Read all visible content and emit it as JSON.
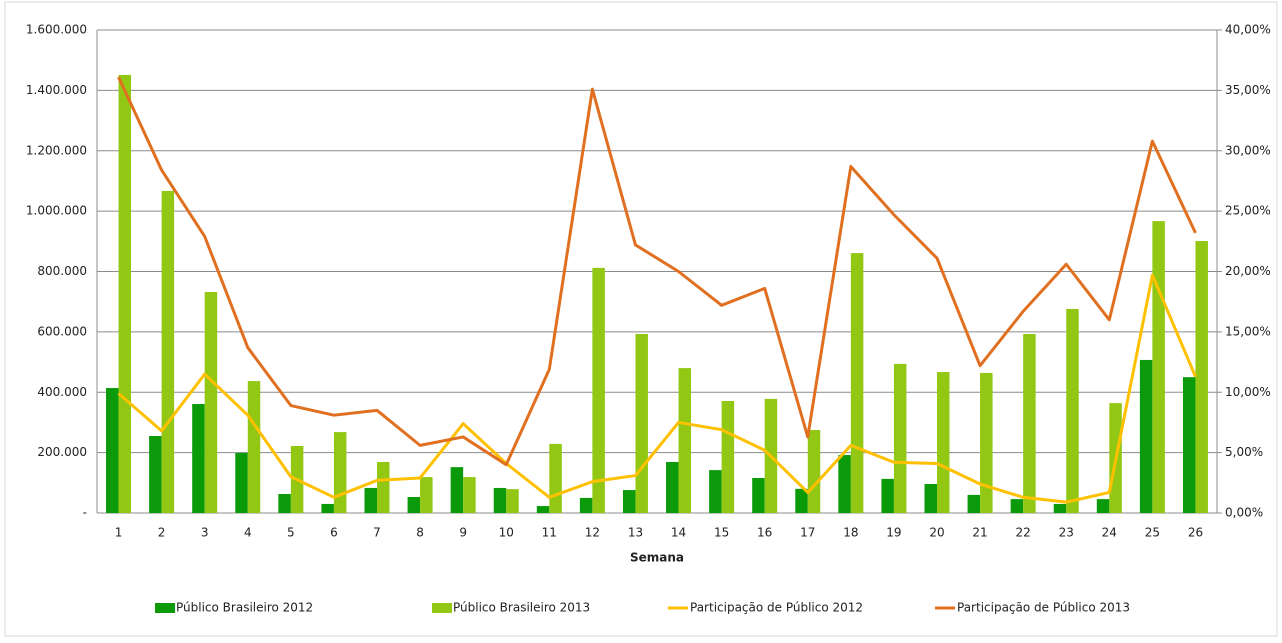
{
  "chart_data": {
    "type": "combo",
    "x_label": "Semana",
    "categories": [
      "1",
      "2",
      "3",
      "4",
      "5",
      "6",
      "7",
      "8",
      "9",
      "10",
      "11",
      "12",
      "13",
      "14",
      "15",
      "16",
      "17",
      "18",
      "19",
      "20",
      "21",
      "22",
      "23",
      "24",
      "25",
      "26"
    ],
    "series": [
      {
        "name": "Público Brasileiro 2012",
        "type": "bar",
        "color": "#0a9a0a",
        "values": [
          414000,
          255000,
          361000,
          199000,
          63000,
          30000,
          83000,
          53000,
          152000,
          83000,
          23000,
          50000,
          76000,
          169000,
          142000,
          116000,
          80000,
          192000,
          113000,
          96000,
          60000,
          46000,
          30000,
          46000,
          507000,
          450000
        ]
      },
      {
        "name": "Público Brasileiro 2013",
        "type": "bar",
        "color": "#92c814",
        "values": [
          1451000,
          1067000,
          732000,
          437000,
          222000,
          268000,
          169000,
          119000,
          119000,
          79000,
          229000,
          812000,
          593000,
          480000,
          371000,
          378000,
          275000,
          861000,
          494000,
          467000,
          464000,
          593000,
          676000,
          364000,
          967000,
          901000
        ]
      },
      {
        "name": "Participação de Público 2012",
        "type": "line",
        "axis": "y2",
        "color": "#ffc000",
        "values": [
          9.9,
          6.8,
          11.5,
          8.1,
          3.0,
          1.3,
          2.7,
          2.9,
          7.4,
          4.1,
          1.3,
          2.6,
          3.1,
          7.5,
          6.9,
          5.2,
          1.7,
          5.6,
          4.2,
          4.1,
          2.4,
          1.3,
          0.9,
          1.7,
          19.7,
          11.3
        ]
      },
      {
        "name": "Participação de Público 2013",
        "type": "line",
        "axis": "y2",
        "color": "#e07020",
        "values": [
          36.1,
          28.4,
          22.9,
          13.7,
          8.9,
          8.1,
          8.5,
          5.6,
          6.3,
          4.0,
          11.9,
          35.1,
          22.2,
          20.0,
          17.2,
          18.6,
          6.3,
          28.7,
          24.7,
          21.1,
          12.2,
          16.7,
          20.6,
          16.0,
          30.8,
          23.2
        ]
      }
    ],
    "ylim": [
      0,
      1600000
    ],
    "yticks": [
      {
        "value": 0,
        "label": "-"
      },
      {
        "value": 200000,
        "label": "200.000"
      },
      {
        "value": 400000,
        "label": "400.000"
      },
      {
        "value": 600000,
        "label": "600.000"
      },
      {
        "value": 800000,
        "label": "800.000"
      },
      {
        "value": 1000000,
        "label": "1.000.000"
      },
      {
        "value": 1200000,
        "label": "1.200.000"
      },
      {
        "value": 1400000,
        "label": "1.400.000"
      },
      {
        "value": 1600000,
        "label": "1.600.000"
      }
    ],
    "y2lim": [
      0,
      40
    ],
    "y2ticks": [
      {
        "value": 0,
        "label": "0,00%"
      },
      {
        "value": 5,
        "label": "5,00%"
      },
      {
        "value": 10,
        "label": "10,00%"
      },
      {
        "value": 15,
        "label": "15,00%"
      },
      {
        "value": 20,
        "label": "20,00%"
      },
      {
        "value": 25,
        "label": "25,00%"
      },
      {
        "value": 30,
        "label": "30,00%"
      },
      {
        "value": 35,
        "label": "35,00%"
      },
      {
        "value": 40,
        "label": "40,00%"
      }
    ],
    "grid": true,
    "legend": "bottom"
  }
}
